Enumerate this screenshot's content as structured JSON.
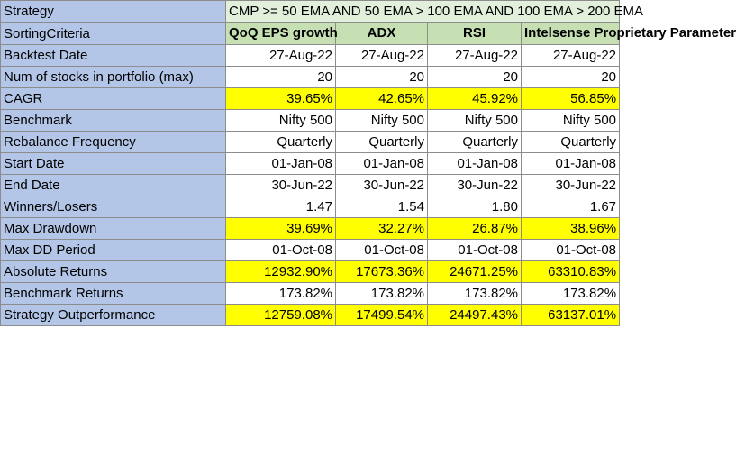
{
  "strategy": {
    "label": "Strategy",
    "value": "CMP >= 50 EMA AND 50 EMA > 100 EMA AND 100 EMA > 200 EMA"
  },
  "sorting": {
    "label": "SortingCriteria",
    "columns": [
      "QoQ EPS growth",
      "ADX",
      "RSI",
      "Intelsense Proprietary Parameter"
    ]
  },
  "colors": {
    "label_fill": "#b4c6e7",
    "strategy_fill": "#e2efda",
    "criteria_fill": "#c6e0b4",
    "highlight_fill": "#ffff00"
  },
  "rows": [
    {
      "label": "Backtest Date",
      "highlight": false,
      "values": [
        "27-Aug-22",
        "27-Aug-22",
        "27-Aug-22",
        "27-Aug-22"
      ]
    },
    {
      "label": "Num of stocks in portfolio (max)",
      "highlight": false,
      "values": [
        "20",
        "20",
        "20",
        "20"
      ]
    },
    {
      "label": "CAGR",
      "highlight": true,
      "values": [
        "39.65%",
        "42.65%",
        "45.92%",
        "56.85%"
      ]
    },
    {
      "label": "Benchmark",
      "highlight": false,
      "values": [
        "Nifty 500",
        "Nifty 500",
        "Nifty 500",
        "Nifty 500"
      ]
    },
    {
      "label": "Rebalance Frequency",
      "highlight": false,
      "values": [
        "Quarterly",
        "Quarterly",
        "Quarterly",
        "Quarterly"
      ]
    },
    {
      "label": "Start Date",
      "highlight": false,
      "values": [
        "01-Jan-08",
        "01-Jan-08",
        "01-Jan-08",
        "01-Jan-08"
      ]
    },
    {
      "label": "End Date",
      "highlight": false,
      "values": [
        "30-Jun-22",
        "30-Jun-22",
        "30-Jun-22",
        "30-Jun-22"
      ]
    },
    {
      "label": "Winners/Losers",
      "highlight": false,
      "values": [
        "1.47",
        "1.54",
        "1.80",
        "1.67"
      ]
    },
    {
      "label": "Max Drawdown",
      "highlight": true,
      "values": [
        "39.69%",
        "32.27%",
        "26.87%",
        "38.96%"
      ]
    },
    {
      "label": "Max DD Period",
      "highlight": false,
      "values": [
        "01-Oct-08",
        "01-Oct-08",
        "01-Oct-08",
        "01-Oct-08"
      ]
    },
    {
      "label": "Absolute Returns",
      "highlight": true,
      "values": [
        "12932.90%",
        "17673.36%",
        "24671.25%",
        "63310.83%"
      ]
    },
    {
      "label": "Benchmark Returns",
      "highlight": false,
      "values": [
        "173.82%",
        "173.82%",
        "173.82%",
        "173.82%"
      ]
    },
    {
      "label": "Strategy Outperformance",
      "highlight": true,
      "values": [
        "12759.08%",
        "17499.54%",
        "24497.43%",
        "63137.01%"
      ]
    }
  ]
}
